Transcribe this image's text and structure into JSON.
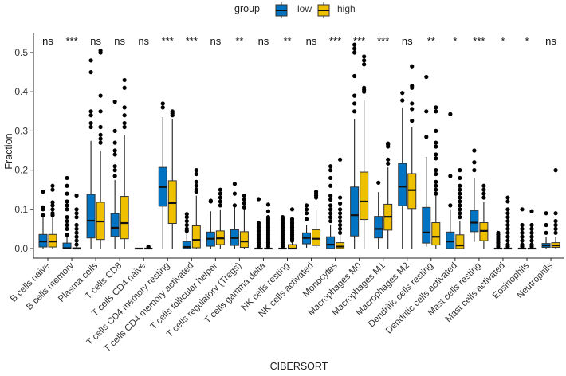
{
  "chart_data": {
    "type": "boxplot",
    "title": "",
    "xlabel": "CIBERSORT",
    "ylabel": "Fraction",
    "ylim": [
      0,
      0.52
    ],
    "yticks": [
      "0.0",
      "0.1",
      "0.2",
      "0.3",
      "0.4",
      "0.5"
    ],
    "legend": {
      "title": "group",
      "position": "top",
      "entries": [
        "low",
        "high"
      ]
    },
    "colors": {
      "low": "#0073C2",
      "high": "#EFC000"
    },
    "stat_format": "[min, q1, median, q3, max]",
    "categories": [
      {
        "name": "B cells naive",
        "sig": "ns",
        "low": {
          "stats": [
            0,
            0.004,
            0.018,
            0.036,
            0.08
          ],
          "outliers": [
            0.085,
            0.1,
            0.105,
            0.145
          ]
        },
        "high": {
          "stats": [
            0,
            0.004,
            0.018,
            0.036,
            0.08
          ],
          "outliers": [
            0.085,
            0.09,
            0.1,
            0.11,
            0.118,
            0.15,
            0.16
          ]
        }
      },
      {
        "name": "B cells memory",
        "sig": "***",
        "low": {
          "stats": [
            0,
            0,
            0.001,
            0.014,
            0.03
          ],
          "outliers": [
            0.035,
            0.05,
            0.06,
            0.07,
            0.08,
            0.1,
            0.11,
            0.12,
            0.14,
            0.16,
            0.18
          ]
        },
        "high": {
          "stats": [
            0,
            0,
            0,
            0.002,
            0.005
          ],
          "outliers": [
            0.01,
            0.02,
            0.03,
            0.04,
            0.05,
            0.06,
            0.08,
            0.09,
            0.1,
            0.135
          ]
        }
      },
      {
        "name": "Plasma cells",
        "sig": "ns",
        "low": {
          "stats": [
            0,
            0.027,
            0.071,
            0.138,
            0.275
          ],
          "outliers": [
            0.31,
            0.32,
            0.34,
            0.35,
            0.45,
            0.48
          ]
        },
        "high": {
          "stats": [
            0,
            0.023,
            0.069,
            0.118,
            0.25
          ],
          "outliers": [
            0.27,
            0.28,
            0.29,
            0.31,
            0.35,
            0.39,
            0.5,
            0.505
          ]
        }
      },
      {
        "name": "T cells CD8",
        "sig": "ns",
        "low": {
          "stats": [
            0,
            0.031,
            0.053,
            0.089,
            0.175
          ],
          "outliers": [
            0.185,
            0.2,
            0.21,
            0.24,
            0.25,
            0.27,
            0.3,
            0.375
          ]
        },
        "high": {
          "stats": [
            0,
            0.025,
            0.065,
            0.133,
            0.29
          ],
          "outliers": [
            0.31,
            0.32,
            0.34,
            0.36,
            0.41,
            0.43
          ]
        }
      },
      {
        "name": "T cells CD4 naive",
        "sig": "ns",
        "low": {
          "stats": [
            0,
            0,
            0,
            0,
            0
          ],
          "outliers": []
        },
        "high": {
          "stats": [
            0,
            0,
            0,
            0,
            0
          ],
          "outliers": [
            0.003,
            0.005
          ]
        }
      },
      {
        "name": "T cells CD4 memory resting",
        "sig": "***",
        "low": {
          "stats": [
            0,
            0.108,
            0.157,
            0.207,
            0.335
          ],
          "outliers": [
            0.36,
            0.37
          ]
        },
        "high": {
          "stats": [
            0,
            0.064,
            0.116,
            0.173,
            0.33
          ],
          "outliers": [
            0.34,
            0.345,
            0.35
          ]
        }
      },
      {
        "name": "T cells CD4 memory activated",
        "sig": "***",
        "low": {
          "stats": [
            0,
            0,
            0.004,
            0.018,
            0.04
          ],
          "outliers": [
            0.045,
            0.05,
            0.06,
            0.07,
            0.08,
            0.088
          ]
        },
        "high": {
          "stats": [
            0,
            0.002,
            0.022,
            0.058,
            0.135
          ],
          "outliers": [
            0.145,
            0.15,
            0.16,
            0.17,
            0.19,
            0.2
          ]
        }
      },
      {
        "name": "T cells follicular helper",
        "sig": "ns",
        "low": {
          "stats": [
            0,
            0.006,
            0.025,
            0.042,
            0.095
          ],
          "outliers": [
            0.12,
            0.122
          ]
        },
        "high": {
          "stats": [
            0,
            0.01,
            0.026,
            0.045,
            0.1
          ],
          "outliers": [
            0.11,
            0.12,
            0.13,
            0.14,
            0.15
          ]
        }
      },
      {
        "name": "T cells regulatory (Tregs)",
        "sig": "**",
        "low": {
          "stats": [
            0,
            0.008,
            0.027,
            0.048,
            0.105
          ],
          "outliers": [
            0.11,
            0.14,
            0.165
          ]
        },
        "high": {
          "stats": [
            0,
            0.003,
            0.018,
            0.043,
            0.1
          ],
          "outliers": [
            0.105,
            0.115,
            0.125,
            0.135
          ]
        }
      },
      {
        "name": "T cells gamma delta",
        "sig": "ns",
        "low": {
          "stats": [
            0,
            0,
            0,
            0,
            0
          ],
          "outliers": [
            0.005,
            0.01,
            0.015,
            0.02,
            0.025,
            0.03,
            0.035,
            0.04,
            0.045,
            0.05,
            0.055,
            0.06,
            0.065,
            0.126
          ]
        },
        "high": {
          "stats": [
            0,
            0,
            0,
            0,
            0
          ],
          "outliers": [
            0.005,
            0.01,
            0.015,
            0.02,
            0.025,
            0.03,
            0.035,
            0.04,
            0.045,
            0.05,
            0.055,
            0.06,
            0.065,
            0.07,
            0.075,
            0.08,
            0.095,
            0.112
          ]
        }
      },
      {
        "name": "NK cells resting",
        "sig": "**",
        "low": {
          "stats": [
            0,
            0,
            0,
            0,
            0
          ],
          "outliers": [
            0.005,
            0.01,
            0.015,
            0.02,
            0.025,
            0.03,
            0.035,
            0.04,
            0.045,
            0.05,
            0.055,
            0.06,
            0.065,
            0.07,
            0.075,
            0.08
          ]
        },
        "high": {
          "stats": [
            0,
            0,
            0,
            0.01,
            0.015
          ],
          "outliers": [
            0.02,
            0.025,
            0.03,
            0.035,
            0.04,
            0.045,
            0.05,
            0.055,
            0.06,
            0.065,
            0.07,
            0.075,
            0.1
          ]
        }
      },
      {
        "name": "NK cells activated",
        "sig": "ns",
        "low": {
          "stats": [
            0.002,
            0.012,
            0.027,
            0.04,
            0.06
          ],
          "outliers": [
            0.075,
            0.09,
            0.1,
            0.11
          ]
        },
        "high": {
          "stats": [
            0.002,
            0.008,
            0.025,
            0.048,
            0.1
          ],
          "outliers": [
            0.13,
            0.135,
            0.14,
            0.145
          ]
        }
      },
      {
        "name": "Monocytes",
        "sig": "***",
        "low": {
          "stats": [
            0,
            0,
            0.01,
            0.03,
            0.06
          ],
          "outliers": [
            0.07,
            0.08,
            0.09,
            0.1,
            0.11,
            0.125,
            0.135,
            0.16,
            0.18,
            0.2,
            0.21
          ]
        },
        "high": {
          "stats": [
            0,
            0,
            0.005,
            0.015,
            0.035
          ],
          "outliers": [
            0.04,
            0.05,
            0.06,
            0.07,
            0.08,
            0.09,
            0.1,
            0.115,
            0.13,
            0.227
          ]
        }
      },
      {
        "name": "Macrophages M0",
        "sig": "***",
        "low": {
          "stats": [
            0,
            0.032,
            0.085,
            0.157,
            0.33
          ],
          "outliers": [
            0.35,
            0.37,
            0.39,
            0.44,
            0.5,
            0.51,
            0.52
          ]
        },
        "high": {
          "stats": [
            0,
            0.074,
            0.12,
            0.195,
            0.38
          ],
          "outliers": [
            0.4,
            0.405,
            0.41,
            0.47,
            0.48,
            0.49
          ]
        }
      },
      {
        "name": "Macrophages M1",
        "sig": "***",
        "low": {
          "stats": [
            0,
            0.027,
            0.05,
            0.082,
            0.144
          ],
          "outliers": [
            0.168
          ]
        },
        "high": {
          "stats": [
            0,
            0.047,
            0.081,
            0.113,
            0.207
          ],
          "outliers": [
            0.217,
            0.227,
            0.26,
            0.265,
            0.268
          ]
        }
      },
      {
        "name": "Macrophages M2",
        "sig": "ns",
        "low": {
          "stats": [
            0,
            0.109,
            0.158,
            0.217,
            0.36
          ],
          "outliers": [
            0.378,
            0.397
          ]
        },
        "high": {
          "stats": [
            0,
            0.102,
            0.149,
            0.191,
            0.31
          ],
          "outliers": [
            0.326,
            0.356,
            0.37,
            0.41,
            0.415,
            0.465
          ]
        }
      },
      {
        "name": "Dendritic cells resting",
        "sig": "**",
        "low": {
          "stats": [
            0.005,
            0.014,
            0.041,
            0.105,
            0.234
          ],
          "outliers": [
            0.285,
            0.35,
            0.438
          ]
        },
        "high": {
          "stats": [
            0,
            0.009,
            0.03,
            0.066,
            0.135
          ],
          "outliers": [
            0.14,
            0.15,
            0.16,
            0.17,
            0.19,
            0.2,
            0.23,
            0.24,
            0.26,
            0.27,
            0.3,
            0.35,
            0.36
          ]
        }
      },
      {
        "name": "Dendritic cells activated",
        "sig": "*",
        "low": {
          "stats": [
            0,
            0,
            0.018,
            0.042,
            0.1
          ],
          "outliers": [
            0.11,
            0.185,
            0.343
          ]
        },
        "high": {
          "stats": [
            0,
            0,
            0.008,
            0.035,
            0.07
          ],
          "outliers": [
            0.08,
            0.09,
            0.1,
            0.11,
            0.12,
            0.13,
            0.14,
            0.15,
            0.16,
            0.18,
            0.2
          ]
        }
      },
      {
        "name": "Mast cells resting",
        "sig": "***",
        "low": {
          "stats": [
            0.017,
            0.043,
            0.066,
            0.097,
            0.18
          ],
          "outliers": [
            0.2,
            0.22,
            0.25
          ]
        },
        "high": {
          "stats": [
            0,
            0.02,
            0.045,
            0.066,
            0.12
          ],
          "outliers": [
            0.13,
            0.14,
            0.15,
            0.16
          ]
        }
      },
      {
        "name": "Mast cells activated",
        "sig": "*",
        "low": {
          "stats": [
            0,
            0,
            0,
            0,
            0
          ],
          "outliers": [
            0.005,
            0.01,
            0.015,
            0.02,
            0.025,
            0.03,
            0.035,
            0.04
          ]
        },
        "high": {
          "stats": [
            0,
            0,
            0,
            0,
            0
          ],
          "outliers": [
            0.005,
            0.01,
            0.02,
            0.03,
            0.04,
            0.05,
            0.06,
            0.07,
            0.08,
            0.09,
            0.1,
            0.12,
            0.13
          ]
        }
      },
      {
        "name": "Eosinophils",
        "sig": "*",
        "low": {
          "stats": [
            0,
            0,
            0,
            0,
            0
          ],
          "outliers": [
            0.005,
            0.01,
            0.02,
            0.03,
            0.04,
            0.05,
            0.06,
            0.1
          ]
        },
        "high": {
          "stats": [
            0,
            0,
            0,
            0,
            0
          ],
          "outliers": [
            0.005,
            0.01,
            0.02,
            0.03,
            0.04,
            0.05,
            0.06,
            0.095
          ]
        }
      },
      {
        "name": "Neutrophils",
        "sig": "ns",
        "low": {
          "stats": [
            0,
            0.003,
            0.008,
            0.013,
            0.03
          ],
          "outliers": [
            0.04,
            0.06,
            0.09
          ]
        },
        "high": {
          "stats": [
            0,
            0.003,
            0.008,
            0.015,
            0.03
          ],
          "outliers": [
            0.04,
            0.05,
            0.06,
            0.07,
            0.09,
            0.2
          ]
        }
      }
    ]
  }
}
